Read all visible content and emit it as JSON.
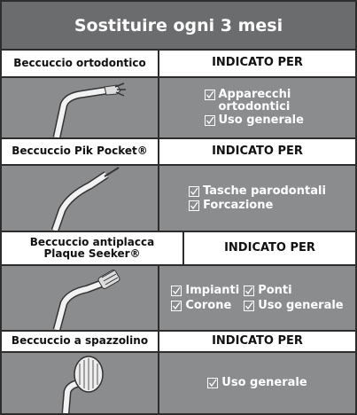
{
  "header": {
    "title": "Sostituire ogni 3 mesi"
  },
  "sections": [
    {
      "name": "Beccuccio ortodontico",
      "indicated_for": "INDICATO PER",
      "items": [
        "Apparecchi ortodontici",
        "Uso generale"
      ]
    },
    {
      "name": "Beccuccio Pik Pocket®",
      "indicated_for": "INDICATO PER",
      "items": [
        "Tasche parodontali",
        "Forcazione"
      ]
    },
    {
      "name": "Beccuccio antiplacca Plaque Seeker®",
      "indicated_for": "INDICATO PER",
      "items": [
        "Impianti",
        "Ponti",
        "Corone",
        "Uso generale"
      ]
    },
    {
      "name": "Beccuccio a spazzolino",
      "indicated_for": "INDICATO PER",
      "items": [
        "Uso generale"
      ]
    }
  ]
}
